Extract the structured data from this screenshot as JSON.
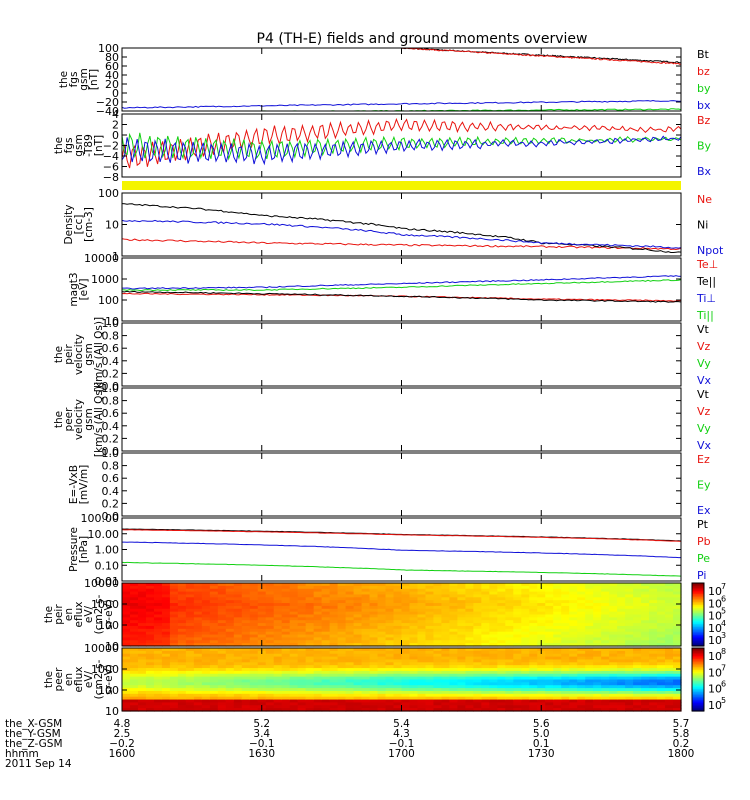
{
  "title": "P4 (TH-E) fields and ground moments overview",
  "colors": {
    "black": "#000000",
    "red": "#e8140f",
    "green": "#12d012",
    "blue": "#1010d8",
    "yellow": "#f4f400"
  },
  "panels": [
    {
      "id": "fgs-gsm",
      "ylabel": [
        "the",
        "fgs",
        "gsm",
        "[nT]"
      ],
      "yticks": [
        "100",
        "80",
        "60",
        "40",
        "20",
        "0",
        "−20",
        "−40"
      ],
      "legend": [
        {
          "text": "Bt",
          "color": "#000000"
        },
        {
          "text": "bz",
          "color": "#e8140f"
        },
        {
          "text": "by",
          "color": "#12d012"
        },
        {
          "text": "bx",
          "color": "#1010d8"
        }
      ]
    },
    {
      "id": "fgs-t89",
      "ylabel": [
        "the",
        "fgs",
        "gsm",
        "-T89",
        "[nT]"
      ],
      "yticks": [
        "4",
        "2",
        "0",
        "−2",
        "−4",
        "−6",
        "−8"
      ],
      "legend": [
        {
          "text": "Bz",
          "color": "#e8140f"
        },
        {
          "text": "By",
          "color": "#12d012"
        },
        {
          "text": "Bx",
          "color": "#1010d8"
        }
      ]
    },
    {
      "id": "density",
      "ylabel": [
        "Density",
        "[cc]",
        "[cm-3]"
      ],
      "yticks": [
        "100",
        "10",
        "1"
      ],
      "legend": [
        {
          "text": "Ne",
          "color": "#e8140f"
        },
        {
          "text": "Ni",
          "color": "#000000"
        },
        {
          "text": "Npot",
          "color": "#1010d8"
        }
      ]
    },
    {
      "id": "temperature",
      "ylabel": [
        "magt3",
        "[eV]"
      ],
      "yticks": [
        "10000",
        "1000",
        "100",
        "10"
      ],
      "legend": [
        {
          "text": "Te⊥",
          "color": "#e8140f"
        },
        {
          "text": "Te||",
          "color": "#000000"
        },
        {
          "text": "Ti⊥",
          "color": "#1010d8"
        },
        {
          "text": "Ti||",
          "color": "#12d012"
        }
      ]
    },
    {
      "id": "peir-velocity",
      "ylabel": [
        "the",
        "peir",
        "velocity",
        "gsm",
        "[km/s (All Qs)]"
      ],
      "yticks": [
        "1.0",
        "0.8",
        "0.6",
        "0.4",
        "0.2",
        "0.0"
      ],
      "legend": [
        {
          "text": "Vt",
          "color": "#000000"
        },
        {
          "text": "Vz",
          "color": "#e8140f"
        },
        {
          "text": "Vy",
          "color": "#12d012"
        },
        {
          "text": "Vx",
          "color": "#1010d8"
        }
      ]
    },
    {
      "id": "peer-velocity",
      "ylabel": [
        "the",
        "peer",
        "velocity",
        "gsm",
        "[km/s (All Qs)]"
      ],
      "yticks": [
        "1.0",
        "0.8",
        "0.6",
        "0.4",
        "0.2",
        "0.0"
      ],
      "legend": [
        {
          "text": "Vt",
          "color": "#000000"
        },
        {
          "text": "Vz",
          "color": "#e8140f"
        },
        {
          "text": "Vy",
          "color": "#12d012"
        },
        {
          "text": "Vx",
          "color": "#1010d8"
        }
      ]
    },
    {
      "id": "efield",
      "ylabel": [
        "E=-VxB",
        "[mV/m]"
      ],
      "yticks": [
        "1.0",
        "0.8",
        "0.6",
        "0.4",
        "0.2",
        "0.0"
      ],
      "legend": [
        {
          "text": "Ez",
          "color": "#e8140f"
        },
        {
          "text": "Ey",
          "color": "#12d012"
        },
        {
          "text": "Ex",
          "color": "#1010d8"
        }
      ]
    },
    {
      "id": "pressure",
      "ylabel": [
        "Pressure",
        "[nPa]"
      ],
      "yticks": [
        "100.00",
        "10.00",
        "1.00",
        "0.10",
        "0.01"
      ],
      "legend": [
        {
          "text": "Pt",
          "color": "#000000"
        },
        {
          "text": "Pb",
          "color": "#e8140f"
        },
        {
          "text": "Pe",
          "color": "#12d012"
        },
        {
          "text": "Pi",
          "color": "#1010d8"
        }
      ]
    },
    {
      "id": "peir-eflux",
      "ylabel": [
        "the",
        "peir",
        "en",
        "eflux",
        "eV/",
        "(cm2-s-",
        "sr-eV)"
      ],
      "yticks": [
        "10000",
        "1000",
        "100",
        "10"
      ],
      "colorbar": [
        "10",
        "10",
        "10",
        "10",
        "10"
      ],
      "colorbar_exp": [
        "7",
        "6",
        "5",
        "4",
        "3"
      ]
    },
    {
      "id": "peer-eflux",
      "ylabel": [
        "the",
        "peer",
        "en",
        "eflux",
        "eV/",
        "(cm2-s-",
        "sr-eV)"
      ],
      "yticks": [
        "10000",
        "1000",
        "100",
        "10"
      ],
      "colorbar": [
        "10",
        "10",
        "10",
        "10"
      ],
      "colorbar_exp": [
        "8",
        "7",
        "6",
        "5"
      ]
    }
  ],
  "xaxis": {
    "rows": [
      {
        "label": "the_X-GSM",
        "values": [
          "4.8",
          "5.2",
          "5.4",
          "5.6",
          "5.7"
        ]
      },
      {
        "label": "the_Y-GSM",
        "values": [
          "2.5",
          "3.4",
          "4.3",
          "5.0",
          "5.8"
        ]
      },
      {
        "label": "the_Z-GSM",
        "values": [
          "−0.2",
          "−0.1",
          "−0.1",
          "0.1",
          "0.2"
        ]
      },
      {
        "label": "hhmm",
        "values": [
          "1600",
          "1630",
          "1700",
          "1730",
          "1800"
        ]
      }
    ],
    "date": "2011 Sep 14"
  },
  "chart_data": [
    {
      "type": "line",
      "panel": "fgs-gsm",
      "ylim": [
        -40,
        100
      ],
      "x_hhmm": [
        "1600",
        "1800"
      ],
      "series": [
        {
          "name": "Bt",
          "x": [
            1700,
            1800
          ],
          "values": [
            100,
            68
          ]
        },
        {
          "name": "bz",
          "x": [
            1700,
            1800
          ],
          "values": [
            100,
            65
          ]
        },
        {
          "name": "by",
          "x": [
            1600,
            1700,
            1800
          ],
          "values": [
            -42,
            -40,
            -36
          ]
        },
        {
          "name": "bx",
          "x": [
            1600,
            1700,
            1800
          ],
          "values": [
            -33,
            -24,
            -17
          ]
        }
      ]
    },
    {
      "type": "line",
      "panel": "fgs-t89",
      "ylim": [
        -9,
        5
      ],
      "series": [
        {
          "name": "Bz",
          "x": [
            1600,
            1630,
            1700,
            1730,
            1800
          ],
          "values": [
            -5,
            0,
            2.5,
            2,
            1.5
          ]
        },
        {
          "name": "By",
          "x": [
            1600,
            1630,
            1700,
            1730,
            1800
          ],
          "values": [
            -2,
            -3,
            -1.5,
            -1,
            -0.5
          ]
        },
        {
          "name": "Bx",
          "x": [
            1600,
            1630,
            1700,
            1730,
            1800
          ],
          "values": [
            -3,
            -4,
            -2,
            -1.5,
            -0.5
          ]
        }
      ]
    },
    {
      "type": "line",
      "panel": "density",
      "yscale": "log",
      "ylim": [
        1,
        200
      ],
      "series": [
        {
          "name": "Ne",
          "x": [
            1600,
            1630,
            1700,
            1730,
            1800
          ],
          "values": [
            4,
            3,
            2.5,
            2.2,
            1.8
          ]
        },
        {
          "name": "Ni",
          "x": [
            1600,
            1630,
            1700,
            1730,
            1800
          ],
          "values": [
            80,
            30,
            10,
            3,
            1.3
          ]
        },
        {
          "name": "Npot",
          "x": [
            1600,
            1630,
            1700,
            1730,
            1800
          ],
          "values": [
            20,
            15,
            6,
            3,
            2
          ]
        }
      ]
    },
    {
      "type": "line",
      "panel": "temperature",
      "yscale": "log",
      "ylim": [
        10,
        10000
      ],
      "series": [
        {
          "name": "Te⊥",
          "x": [
            1600,
            1630,
            1700,
            1730,
            1800
          ],
          "values": [
            200,
            180,
            150,
            110,
            90
          ]
        },
        {
          "name": "Te||",
          "x": [
            1600,
            1630,
            1700,
            1730,
            1800
          ],
          "values": [
            250,
            200,
            150,
            100,
            80
          ]
        },
        {
          "name": "Ti⊥",
          "x": [
            1600,
            1630,
            1700,
            1730,
            1800
          ],
          "values": [
            350,
            400,
            600,
            900,
            1400
          ]
        },
        {
          "name": "Ti||",
          "x": [
            1600,
            1630,
            1700,
            1730,
            1800
          ],
          "values": [
            300,
            300,
            400,
            600,
            900
          ]
        }
      ]
    },
    {
      "type": "line",
      "panel": "pressure",
      "yscale": "log",
      "ylim": [
        0.01,
        100
      ],
      "series": [
        {
          "name": "Pt",
          "x": [
            1600,
            1700,
            1800
          ],
          "values": [
            20,
            9,
            3.5
          ]
        },
        {
          "name": "Pb",
          "x": [
            1600,
            1700,
            1800
          ],
          "values": [
            18,
            8.5,
            3.3
          ]
        },
        {
          "name": "Pe",
          "x": [
            1600,
            1700,
            1800
          ],
          "values": [
            0.15,
            0.05,
            0.02
          ]
        },
        {
          "name": "Pi",
          "x": [
            1600,
            1700,
            1800
          ],
          "values": [
            3,
            0.9,
            0.3
          ]
        }
      ]
    },
    {
      "type": "heatmap",
      "panel": "peir-eflux",
      "yscale": "log",
      "ylim": [
        7,
        20000
      ]
    },
    {
      "type": "heatmap",
      "panel": "peer-eflux",
      "yscale": "log",
      "ylim": [
        7,
        20000
      ]
    }
  ]
}
